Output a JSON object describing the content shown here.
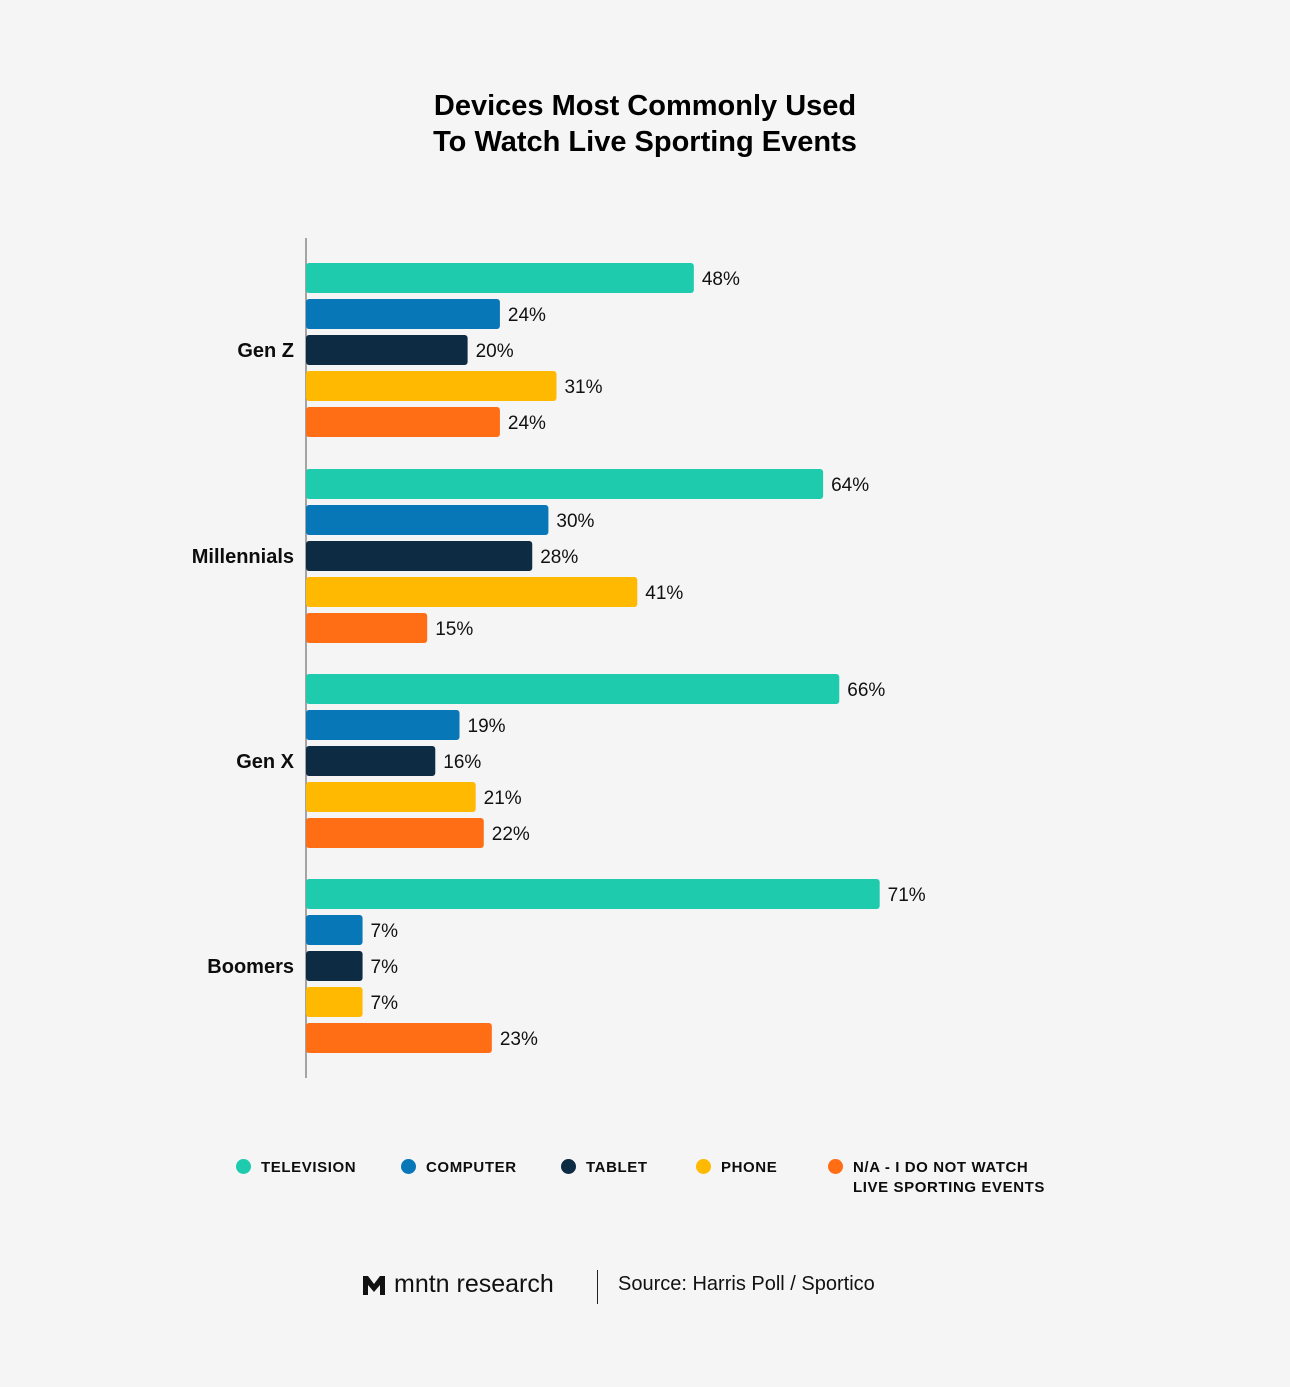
{
  "title_lines": [
    "Devices Most Commonly Used",
    "To Watch Live Sporting Events"
  ],
  "chart_data": {
    "type": "bar",
    "orientation": "horizontal",
    "title": "Devices Most Commonly Used To Watch Live Sporting Events",
    "categories": [
      "Gen Z",
      "Millennials",
      "Gen X",
      "Boomers"
    ],
    "value_suffix": "%",
    "series": [
      {
        "name": "TELEVISION",
        "color": "#1ecbac",
        "values": [
          48,
          64,
          66,
          71
        ]
      },
      {
        "name": "COMPUTER",
        "color": "#0877b8",
        "values": [
          24,
          30,
          19,
          7
        ]
      },
      {
        "name": "TABLET",
        "color": "#0d2b42",
        "values": [
          20,
          28,
          16,
          7
        ]
      },
      {
        "name": "PHONE",
        "color": "#ffb901",
        "values": [
          31,
          41,
          21,
          7
        ]
      },
      {
        "name": "N/A - I DO NOT WATCH\nLIVE SPORTING EVENTS",
        "color": "#ff6d14",
        "values": [
          24,
          15,
          22,
          23
        ]
      }
    ],
    "xlim": [
      0,
      100
    ],
    "grid": false,
    "legend_position": "bottom"
  },
  "legend": [
    {
      "label": "TELEVISION",
      "color": "#1ecbac"
    },
    {
      "label": "COMPUTER",
      "color": "#0877b8"
    },
    {
      "label": "TABLET",
      "color": "#0d2b42"
    },
    {
      "label": "PHONE",
      "color": "#ffb901"
    },
    {
      "label": "N/A - I DO NOT WATCH\nLIVE SPORTING EVENTS",
      "color": "#ff6d14"
    }
  ],
  "footer": {
    "brand": "mntn research",
    "brand_icon": "mntn-logo-icon",
    "source": "Source: Harris Poll / Sportico"
  }
}
